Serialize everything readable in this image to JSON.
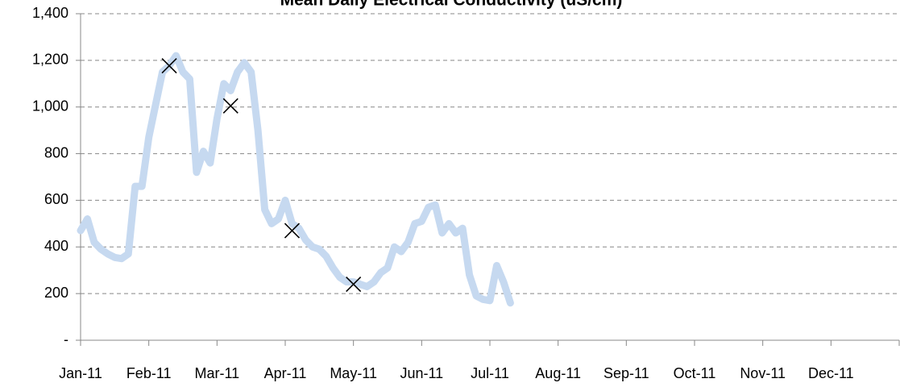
{
  "chart_data": {
    "type": "line",
    "title": "Mean Daily Electrical Conductivity (uS/cm)",
    "categories": [
      "Jan-11",
      null,
      null,
      null,
      null,
      null,
      null,
      null,
      null,
      null,
      "Feb-11",
      null,
      null,
      null,
      null,
      null,
      null,
      null,
      null,
      null,
      "Mar-11",
      null,
      null,
      null,
      null,
      null,
      null,
      null,
      null,
      null,
      "Apr-11",
      null,
      null,
      null,
      null,
      null,
      null,
      null,
      null,
      null,
      "May-11",
      null,
      null,
      null,
      null,
      null,
      null,
      null,
      null,
      null,
      "Jun-11",
      null,
      null,
      null,
      null,
      null,
      null,
      null,
      null,
      null,
      "Jul-11",
      null,
      null,
      null,
      null,
      null,
      null,
      null,
      null,
      null,
      "Aug-11",
      null,
      null,
      null,
      null,
      null,
      null,
      null,
      null,
      null,
      "Sep-11",
      null,
      null,
      null,
      null,
      null,
      null,
      null,
      null,
      null,
      "Oct-11",
      null,
      null,
      null,
      null,
      null,
      null,
      null,
      null,
      null,
      "Nov-11",
      null,
      null,
      null,
      null,
      null,
      null,
      null,
      null,
      null,
      "Dec-11",
      null,
      null,
      null,
      null,
      null,
      null,
      null,
      null,
      null
    ],
    "series": [
      {
        "color": "#c6d9f0",
        "values": [
          470,
          520,
          420,
          390,
          370,
          355,
          350,
          370,
          660,
          660,
          870,
          1010,
          1150,
          1177,
          1220,
          1150,
          1120,
          720,
          810,
          760,
          950,
          1100,
          1070,
          1150,
          1190,
          1150,
          900,
          560,
          500,
          520,
          600,
          500,
          480,
          430,
          400,
          390,
          360,
          310,
          270,
          250,
          250,
          240,
          230,
          250,
          290,
          310,
          400,
          380,
          420,
          500,
          510,
          570,
          580,
          460,
          500,
          460,
          480,
          280,
          190,
          175,
          170,
          320,
          250,
          160,
          null,
          null,
          null,
          null,
          null,
          null,
          null,
          null,
          null,
          null,
          null,
          null,
          null,
          null,
          null,
          null,
          null,
          null,
          null,
          null,
          null,
          null,
          null,
          null,
          null,
          null,
          null,
          null,
          null,
          null,
          null,
          null,
          null,
          null,
          null,
          null,
          null,
          null,
          null,
          null,
          null,
          null,
          null,
          null,
          null,
          null,
          null,
          null,
          null,
          null,
          null,
          null,
          null,
          null,
          null,
          null
        ]
      },
      {
        "color": "#000000",
        "marker": "x",
        "values": [
          null,
          null,
          null,
          null,
          null,
          null,
          null,
          null,
          null,
          null,
          null,
          null,
          null,
          1177,
          null,
          null,
          null,
          null,
          null,
          null,
          null,
          null,
          1005,
          null,
          null,
          null,
          null,
          null,
          null,
          null,
          null,
          470,
          null,
          null,
          null,
          null,
          null,
          null,
          null,
          null,
          240,
          null,
          null,
          null,
          null,
          null,
          null,
          null,
          null,
          null,
          null,
          null,
          null,
          null,
          null,
          null,
          null,
          null,
          null,
          null,
          null,
          null,
          null,
          null,
          null,
          null,
          null,
          null,
          null,
          null,
          null,
          null,
          null,
          null,
          null,
          null,
          null,
          null,
          null,
          null,
          null,
          null,
          null,
          null,
          null,
          null,
          null,
          null,
          null,
          null,
          null,
          null,
          null,
          null,
          null,
          null,
          null,
          null,
          null,
          null,
          null,
          null,
          null,
          null,
          null,
          null,
          null,
          null,
          null,
          null,
          null,
          null,
          null,
          null,
          null,
          null,
          null,
          null,
          null,
          null
        ]
      }
    ],
    "ylim": [
      0,
      1400
    ],
    "yticks": [
      {
        "value": 0,
        "label": "-"
      },
      200,
      400,
      600,
      800,
      {
        "value": 1000,
        "label": "1,000"
      },
      {
        "value": 1200,
        "label": "1,200"
      },
      {
        "value": 1400,
        "label": "1,400"
      }
    ],
    "grid": true
  }
}
